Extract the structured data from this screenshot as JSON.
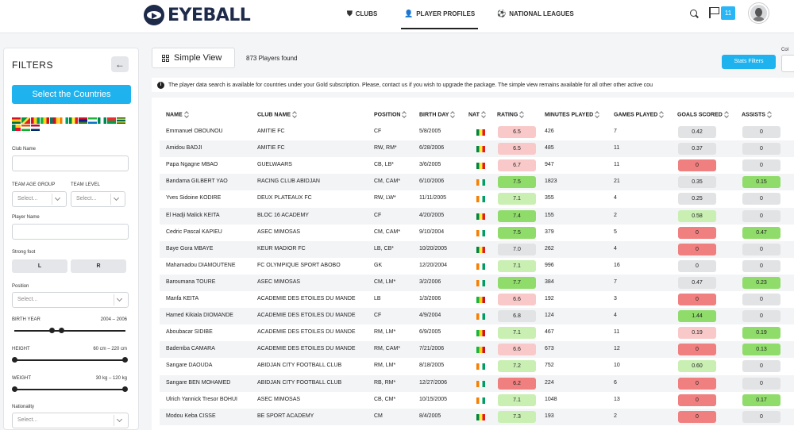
{
  "app": {
    "brand": "EYEBALL",
    "nav": [
      {
        "label": "CLUBS",
        "icon": "shield-icon"
      },
      {
        "label": "PLAYER PROFILES",
        "icon": "person-icon"
      },
      {
        "label": "NATIONAL LEAGUES",
        "icon": "football-icon"
      }
    ],
    "notifications": "11"
  },
  "filters": {
    "title": "FILTERS",
    "back_glyph": "←",
    "select_countries": "Select the Countries",
    "club_name_label": "Club Name",
    "team_age_group_label": "TEAM AGE GROUP",
    "team_level_label": "TEAM LEVEL",
    "select_placeholder": "Select...",
    "player_name_label": "Player Name",
    "strong_foot_label": "Strong foot",
    "foot_left": "L",
    "foot_right": "R",
    "position_label": "Position",
    "birth_year_label": "BIRTH YEAR",
    "birth_year_range": "2004 – 2006",
    "birth_year_values": [
      2004,
      2006
    ],
    "height_label": "HEIGHT",
    "height_range": "60 cm – 220 cm",
    "weight_label": "WEIGHT",
    "weight_range": "30 kg – 120 kg",
    "nationality_label": "Nationality"
  },
  "main": {
    "view_label": "Simple View",
    "players_found": "873 Players found",
    "stats_filters": "Stats Filters",
    "col_label": "Col",
    "notice": "The player data search is available for countries under your Gold subscription. Please, contact us if you wish to upgrade the package. The simple view remains available for all other other active cou"
  },
  "table": {
    "headers": [
      "NAME",
      "CLUB NAME",
      "POSITION",
      "BIRTH DAY",
      "NAT",
      "RATING",
      "MINUTES PLAYED",
      "GAMES PLAYED",
      "GOALS SCORED",
      "ASSISTS"
    ],
    "rows": [
      {
        "name": "Emmanuel OBOUNOU",
        "club": "AMITIE FC",
        "position": "CF",
        "birthday": "5/8/2005",
        "nat": "sn",
        "rating": "6.5",
        "rating_color": "#f9c9c9",
        "minutes": "426",
        "games": "7",
        "goals": "0.42",
        "goals_color": "#e2e3e5",
        "assists": "0",
        "assists_color": "#e2e3e5"
      },
      {
        "name": "Amidou BADJI",
        "club": "AMITIE FC",
        "position": "RW, RM*",
        "birthday": "6/28/2006",
        "nat": "sn",
        "rating": "6.5",
        "rating_color": "#f9c9c9",
        "minutes": "485",
        "games": "11",
        "goals": "0.37",
        "goals_color": "#e2e3e5",
        "assists": "0",
        "assists_color": "#e2e3e5"
      },
      {
        "name": "Papa Ngagne MBAO",
        "club": "GUELWAARS",
        "position": "CB, LB*",
        "birthday": "3/6/2005",
        "nat": "sn",
        "rating": "6.7",
        "rating_color": "#f9c9c9",
        "minutes": "947",
        "games": "11",
        "goals": "0",
        "goals_color": "#f07f7f",
        "assists": "0",
        "assists_color": "#e2e3e5"
      },
      {
        "name": "Bandama GILBERT YAO",
        "club": "RACING CLUB ABIDJAN",
        "position": "CM, CAM*",
        "birthday": "6/10/2006",
        "nat": "ci",
        "rating": "7.5",
        "rating_color": "#8fdc6a",
        "minutes": "1823",
        "games": "21",
        "goals": "0.35",
        "goals_color": "#e2e3e5",
        "assists": "0.15",
        "assists_color": "#8fdc6a"
      },
      {
        "name": "Yves Sidoine KODIRE",
        "club": "DEUX PLATEAUX FC",
        "position": "RW, LW*",
        "birthday": "11/11/2005",
        "nat": "ci",
        "rating": "7.1",
        "rating_color": "#c9efb3",
        "minutes": "355",
        "games": "4",
        "goals": "0.25",
        "goals_color": "#e2e3e5",
        "assists": "0",
        "assists_color": "#e2e3e5"
      },
      {
        "name": "El Hadji Malick KEITA",
        "club": "BLOC 16 ACADEMY",
        "position": "CF",
        "birthday": "4/20/2005",
        "nat": "sn",
        "rating": "7.4",
        "rating_color": "#8fdc6a",
        "minutes": "155",
        "games": "2",
        "goals": "0.58",
        "goals_color": "#c9efb3",
        "assists": "0",
        "assists_color": "#e2e3e5"
      },
      {
        "name": "Cedric Pascal KAPIEU",
        "club": "ASEC MIMOSAS",
        "position": "CM, CAM*",
        "birthday": "9/10/2004",
        "nat": "ci",
        "rating": "7.5",
        "rating_color": "#8fdc6a",
        "minutes": "379",
        "games": "5",
        "goals": "0",
        "goals_color": "#f07f7f",
        "assists": "0.47",
        "assists_color": "#8fdc6a"
      },
      {
        "name": "Baye Gora MBAYE",
        "club": "KEUR MADIOR FC",
        "position": "LB, CB*",
        "birthday": "10/20/2005",
        "nat": "sn",
        "rating": "7.0",
        "rating_color": "#e2e3e5",
        "minutes": "262",
        "games": "4",
        "goals": "0",
        "goals_color": "#f07f7f",
        "assists": "0",
        "assists_color": "#e2e3e5"
      },
      {
        "name": "Mahamadou DIAMOUTENE",
        "club": "FC OLYMPIQUE SPORT ABOBO",
        "position": "GK",
        "birthday": "12/20/2004",
        "nat": "ci",
        "rating": "7.1",
        "rating_color": "#c9efb3",
        "minutes": "996",
        "games": "16",
        "goals": "0",
        "goals_color": "#e2e3e5",
        "assists": "0",
        "assists_color": "#e2e3e5"
      },
      {
        "name": "Baroumana TOURE",
        "club": "ASEC MIMOSAS",
        "position": "CM, LM*",
        "birthday": "3/2/2006",
        "nat": "ci",
        "rating": "7.7",
        "rating_color": "#8fdc6a",
        "minutes": "384",
        "games": "7",
        "goals": "0.47",
        "goals_color": "#e2e3e5",
        "assists": "0.23",
        "assists_color": "#8fdc6a"
      },
      {
        "name": "Manfa KEITA",
        "club": "ACADEMIE DES ETOILES DU MANDE",
        "position": "LB",
        "birthday": "1/3/2006",
        "nat": "ml",
        "rating": "6.6",
        "rating_color": "#f9c9c9",
        "minutes": "192",
        "games": "3",
        "goals": "0",
        "goals_color": "#f07f7f",
        "assists": "0",
        "assists_color": "#e2e3e5"
      },
      {
        "name": "Hamed Kikiala DIOMANDE",
        "club": "ACADEMIE DES ETOILES DU MANDE",
        "position": "CF",
        "birthday": "4/9/2004",
        "nat": "ci",
        "rating": "6.8",
        "rating_color": "#e2e3e5",
        "minutes": "124",
        "games": "4",
        "goals": "1.44",
        "goals_color": "#8fdc6a",
        "assists": "0",
        "assists_color": "#e2e3e5"
      },
      {
        "name": "Aboubacar SIDIBE",
        "club": "ACADEMIE DES ETOILES DU MANDE",
        "position": "RM, LM*",
        "birthday": "6/9/2005",
        "nat": "ml",
        "rating": "7.1",
        "rating_color": "#c9efb3",
        "minutes": "467",
        "games": "11",
        "goals": "0.19",
        "goals_color": "#f9c9c9",
        "assists": "0.19",
        "assists_color": "#8fdc6a"
      },
      {
        "name": "Bademba CAMARA",
        "club": "ACADEMIE DES ETOILES DU MANDE",
        "position": "RM, CAM*",
        "birthday": "7/21/2006",
        "nat": "ml",
        "rating": "6.6",
        "rating_color": "#f9c9c9",
        "minutes": "673",
        "games": "12",
        "goals": "0",
        "goals_color": "#f07f7f",
        "assists": "0.13",
        "assists_color": "#8fdc6a"
      },
      {
        "name": "Sangare DAOUDA",
        "club": "ABIDJAN CITY FOOTBALL CLUB",
        "position": "RM, LM*",
        "birthday": "8/18/2005",
        "nat": "ci",
        "rating": "7.2",
        "rating_color": "#c9efb3",
        "minutes": "752",
        "games": "10",
        "goals": "0.60",
        "goals_color": "#c9efb3",
        "assists": "0",
        "assists_color": "#e2e3e5"
      },
      {
        "name": "Sangare BEN MOHAMED",
        "club": "ABIDJAN CITY FOOTBALL CLUB",
        "position": "RB, RM*",
        "birthday": "12/27/2006",
        "nat": "ci",
        "rating": "6.2",
        "rating_color": "#f07f7f",
        "minutes": "224",
        "games": "6",
        "goals": "0",
        "goals_color": "#f07f7f",
        "assists": "0",
        "assists_color": "#e2e3e5"
      },
      {
        "name": "Ulrich Yannick Tresor BOHUI",
        "club": "ASEC MIMOSAS",
        "position": "CB, CM*",
        "birthday": "10/15/2005",
        "nat": "ci",
        "rating": "7.1",
        "rating_color": "#c9efb3",
        "minutes": "1048",
        "games": "13",
        "goals": "0",
        "goals_color": "#f07f7f",
        "assists": "0.17",
        "assists_color": "#8fdc6a"
      },
      {
        "name": "Modou Keba CISSE",
        "club": "BE SPORT ACADEMY",
        "position": "CM",
        "birthday": "8/4/2005",
        "nat": "sn",
        "rating": "7.3",
        "rating_color": "#c9efb3",
        "minutes": "193",
        "games": "2",
        "goals": "0",
        "goals_color": "#f07f7f",
        "assists": "0",
        "assists_color": "#e2e3e5"
      }
    ]
  }
}
